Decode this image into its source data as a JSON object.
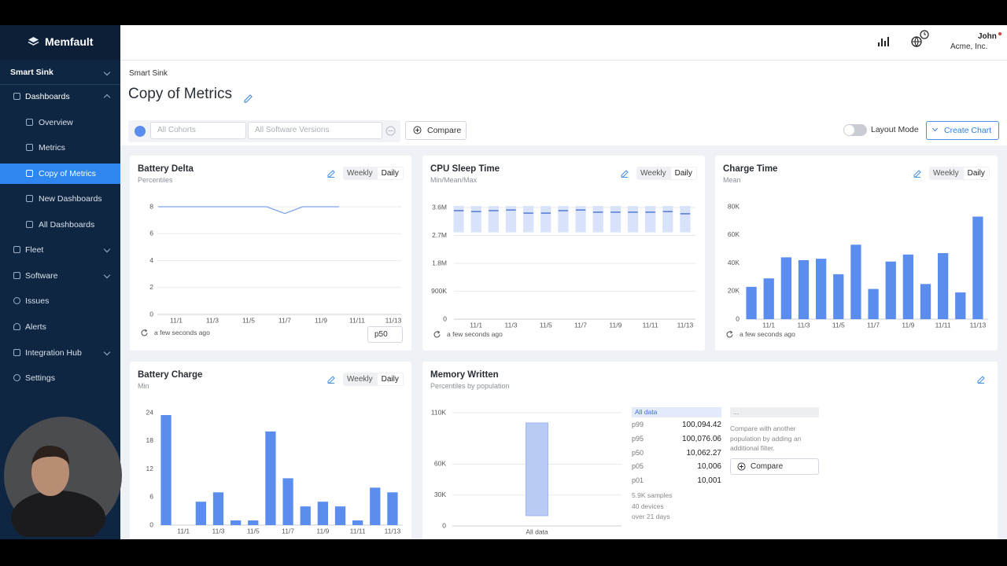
{
  "sidebar": {
    "brand": "Memfault",
    "project": "Smart Sink",
    "nav": [
      {
        "label": "Dashboards",
        "children": [
          "Overview",
          "Metrics",
          "Copy of Metrics",
          "New Dashboards",
          "All Dashboards"
        ]
      },
      {
        "label": "Fleet"
      },
      {
        "label": "Software"
      },
      {
        "label": "Issues"
      },
      {
        "label": "Alerts"
      },
      {
        "label": "Integration Hub"
      },
      {
        "label": "Settings"
      }
    ]
  },
  "header": {
    "user": "John",
    "org": "Acme, Inc."
  },
  "page": {
    "breadcrumb": "Smart Sink",
    "title": "Copy of Metrics"
  },
  "toolbar": {
    "cohorts": "All Cohorts",
    "versions": "All Software Versions",
    "compare": "Compare",
    "layout_mode": "Layout Mode",
    "create_chart": "Create Chart"
  },
  "cards": [
    {
      "title": "Battery Delta",
      "subtitle": "Percentiles",
      "toggle": [
        "Weekly",
        "Daily"
      ],
      "updated": "a few seconds ago",
      "percentile": "p50",
      "chart_data": {
        "type": "line",
        "categories": [
          null,
          "11/1",
          null,
          "11/3",
          null,
          "11/5",
          null,
          "11/7",
          null,
          "11/9",
          null,
          "11/11",
          null,
          "11/13"
        ],
        "values": [
          8,
          8,
          8,
          8,
          8,
          8,
          8,
          7.5,
          8,
          8,
          8,
          null,
          null,
          null
        ],
        "color": "#7ea2ea",
        "ylim": [
          0,
          8
        ],
        "yticks": [
          0,
          2,
          4,
          6,
          8
        ],
        "grid": true
      }
    },
    {
      "title": "CPU Sleep Time",
      "subtitle": "Min/Mean/Max",
      "toggle": [
        "Weekly",
        "Daily"
      ],
      "updated": "a few seconds ago",
      "chart_data": {
        "type": "range",
        "categories": [
          null,
          "11/1",
          null,
          "11/3",
          null,
          "11/5",
          null,
          "11/7",
          null,
          "11/9",
          null,
          "11/11",
          null,
          "11/13"
        ],
        "min": [
          2800000,
          2800000,
          2800000,
          2800000,
          2800000,
          2800000,
          2800000,
          2800000,
          2800000,
          2800000,
          2800000,
          2800000,
          2800000,
          2800000
        ],
        "mean": [
          3500000,
          3470000,
          3500000,
          3520000,
          3420000,
          3420000,
          3500000,
          3520000,
          3450000,
          3450000,
          3450000,
          3450000,
          3470000,
          3400000
        ],
        "max": [
          3650000,
          3650000,
          3650000,
          3650000,
          3650000,
          3650000,
          3650000,
          3650000,
          3650000,
          3650000,
          3650000,
          3650000,
          3650000,
          3650000
        ],
        "color": "#d8e3fb",
        "mean_color": "#5b7fd6",
        "ylim": [
          0,
          3600000
        ],
        "yticks": [
          0,
          {
            "value": 900000,
            "label": "900K"
          },
          {
            "value": 1800000,
            "label": "1.8M"
          },
          {
            "value": 2700000,
            "label": "2.7M"
          },
          {
            "value": 3600000,
            "label": "3.6M"
          }
        ],
        "grid": true
      }
    },
    {
      "title": "Charge Time",
      "subtitle": "Mean",
      "toggle": [
        "Weekly",
        "Daily"
      ],
      "updated": "a few seconds ago",
      "chart_data": {
        "type": "bar",
        "categories": [
          null,
          "11/1",
          null,
          "11/3",
          null,
          "11/5",
          null,
          "11/7",
          null,
          "11/9",
          null,
          "11/11",
          null,
          "11/13"
        ],
        "values": [
          23000,
          29000,
          44000,
          42000,
          43000,
          32000,
          53000,
          21500,
          41000,
          46000,
          25000,
          47000,
          19000,
          73000
        ],
        "color": "#5b8def",
        "ylim": [
          0,
          80000
        ],
        "yticks": [
          0,
          {
            "value": 20000,
            "label": "20K"
          },
          {
            "value": 40000,
            "label": "40K"
          },
          {
            "value": 60000,
            "label": "60K"
          },
          {
            "value": 80000,
            "label": "80K"
          }
        ],
        "grid": false
      }
    },
    {
      "title": "Battery Charge",
      "subtitle": "Min",
      "toggle": [
        "Weekly",
        "Daily"
      ],
      "chart_data": {
        "type": "bar",
        "categories": [
          null,
          "11/1",
          null,
          "11/3",
          null,
          "11/5",
          null,
          "11/7",
          null,
          "11/9",
          null,
          "11/11",
          null,
          "11/13"
        ],
        "values": [
          23.5,
          0,
          5,
          7,
          1,
          1,
          20,
          10,
          4,
          5,
          4,
          1,
          8,
          7
        ],
        "color": "#5b8def",
        "ylim": [
          0,
          24
        ],
        "yticks": [
          0,
          6,
          12,
          18,
          24
        ],
        "grid": false
      }
    },
    {
      "title": "Memory Written",
      "subtitle": "Percentiles by population",
      "notes": [
        "5.9K samples",
        "40 devices",
        "over 21 days"
      ],
      "compare_panel": {
        "header": "...",
        "text": "Compare with another population by adding an additional filter.",
        "button": "Compare"
      },
      "chart_data": {
        "type": "percentile_bar",
        "categories": [
          "All data"
        ],
        "series": [
          {
            "name": "p99",
            "values": [
              100094.42
            ],
            "value_labels": [
              "100,094.42"
            ]
          },
          {
            "name": "p95",
            "values": [
              100076.06
            ],
            "value_labels": [
              "100,076.06"
            ]
          },
          {
            "name": "p50",
            "values": [
              10062.27
            ],
            "value_labels": [
              "10,062.27"
            ]
          },
          {
            "name": "p05",
            "values": [
              10006
            ],
            "value_labels": [
              "10,006"
            ]
          },
          {
            "name": "p01",
            "values": [
              10001
            ],
            "value_labels": [
              "10,001"
            ]
          }
        ],
        "color": "#b9cbf5",
        "ylim": [
          0,
          110000
        ],
        "yticks": [
          0,
          {
            "value": 30000,
            "label": "30K"
          },
          {
            "value": 60000,
            "label": "60K"
          },
          {
            "value": 110000,
            "label": "110K"
          }
        ],
        "grid": true
      }
    }
  ]
}
